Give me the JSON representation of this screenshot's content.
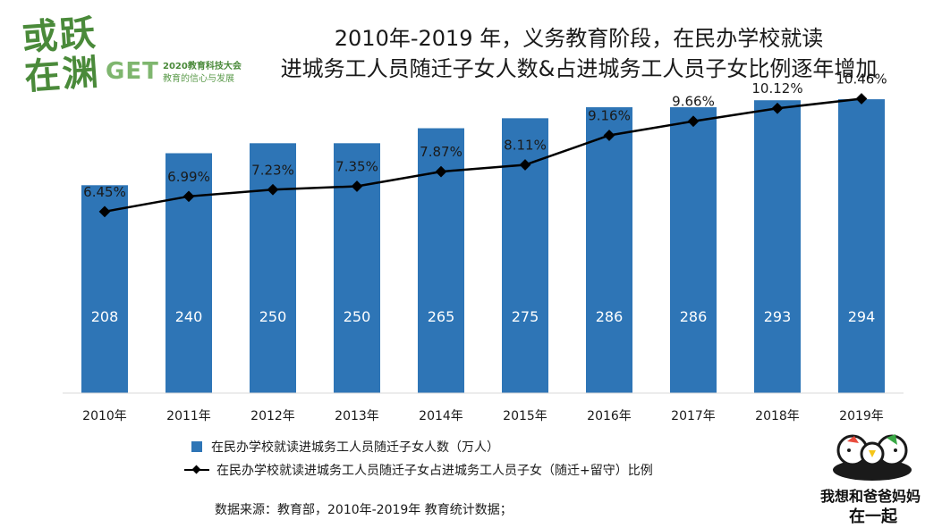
{
  "logo_left": {
    "calligraphy_line1": "或跃",
    "calligraphy_line2": "在渊",
    "brand": "GET",
    "conference": "2020教育科技大会",
    "slogan": "教育的信心与发展"
  },
  "title": {
    "line1": "2010年-2019 年，义务教育阶段，在民办学校就读",
    "line2": "进城务工人员随迁子女人数&占进城务工人员子女比例逐年增加"
  },
  "chart_data": {
    "type": "bar",
    "categories": [
      "2010年",
      "2011年",
      "2012年",
      "2013年",
      "2014年",
      "2015年",
      "2016年",
      "2017年",
      "2018年",
      "2019年"
    ],
    "series": [
      {
        "name": "在民办学校就读进城务工人员随迁子女人数（万人）",
        "type": "bar",
        "values": [
          208,
          240,
          250,
          250,
          265,
          275,
          286,
          286,
          293,
          294
        ],
        "labels": [
          "208",
          "240",
          "250",
          "250",
          "265",
          "275",
          "286",
          "286",
          "293",
          "294"
        ],
        "color": "#2e75b6"
      },
      {
        "name": "在民办学校就读进城务工人员随迁子女占进城务工人员子女（随迁+留守）比例",
        "type": "line",
        "values": [
          6.45,
          6.99,
          7.23,
          7.35,
          7.87,
          8.11,
          9.16,
          9.66,
          10.12,
          10.46
        ],
        "labels": [
          "6.45%",
          "6.99%",
          "7.23%",
          "7.35%",
          "7.87%",
          "8.11%",
          "9.16%",
          "9.66%",
          "10.12%",
          "10.46%"
        ],
        "color": "#000000"
      }
    ],
    "ylim_bar": [
      0,
      320
    ],
    "ylim_line": [
      0,
      12
    ],
    "grid": false,
    "legend_position": "bottom-left"
  },
  "source": "数据来源：教育部，2010年-2019年 教育统计数据；",
  "logo_right": {
    "line1": "我想和爸爸妈妈",
    "line2": "在一起"
  }
}
